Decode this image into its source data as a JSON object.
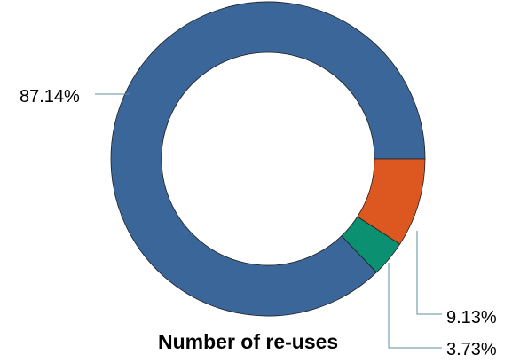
{
  "chart_data": {
    "type": "pie",
    "variant": "donut",
    "title": "Number of re-uses",
    "slices": [
      {
        "value": 87.14,
        "label": "87.14%",
        "color": "#3a6699"
      },
      {
        "value": 9.13,
        "label": "9.13%",
        "color": "#dc5820"
      },
      {
        "value": 3.73,
        "label": "3.73%",
        "color": "#0b9171"
      }
    ],
    "legend": "none"
  }
}
